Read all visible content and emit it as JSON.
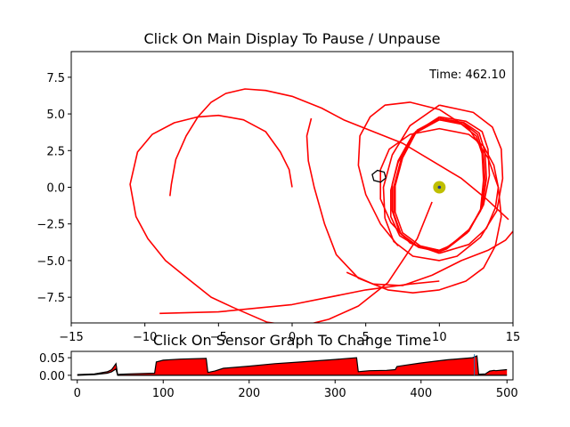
{
  "chart_data": [
    {
      "type": "line",
      "title": "Click On Main Display To Pause / Unpause",
      "annotation": "Time: 462.10",
      "xlim": [
        -15,
        15
      ],
      "ylim": [
        -9.25,
        9.25
      ],
      "x_ticks": [
        -15,
        -10,
        -5,
        0,
        5,
        10,
        15
      ],
      "x_tick_labels": [
        "−15",
        "−10",
        "−5",
        "0",
        "5",
        "10",
        "15"
      ],
      "y_ticks": [
        7.5,
        5.0,
        2.5,
        0.0,
        -2.5,
        -5.0,
        -7.5
      ],
      "y_tick_labels": [
        "7.5",
        "5.0",
        "2.5",
        "0.0",
        "−2.5",
        "−5.0",
        "−7.5"
      ],
      "grid": false,
      "colors": {
        "trajectory": "#ff0000",
        "target": "#bfbf00",
        "marker": "#000000",
        "axes": "#000000"
      },
      "series": [
        {
          "x": [
            0.0,
            -0.2,
            -0.8,
            -1.8,
            -3.3,
            -5.0,
            -6.4,
            -8.0,
            -9.5,
            -10.5,
            -11.0,
            -10.6,
            -9.8,
            -8.6,
            -7.0,
            -5.5,
            -4.0,
            -1.7,
            0.5,
            2.5,
            4.5,
            6.5,
            8.5,
            9.5
          ],
          "y": [
            0.0,
            1.2,
            2.4,
            3.8,
            4.6,
            4.9,
            4.8,
            4.4,
            3.6,
            2.4,
            0.2,
            -2.0,
            -3.5,
            -5.0,
            -6.3,
            -7.5,
            -8.2,
            -9.2,
            -9.5,
            -9.0,
            -8.1,
            -6.5,
            -3.5,
            -1.0
          ]
        },
        {
          "x": [
            -8.3,
            -8.2,
            -7.9,
            -7.2,
            -6.4,
            -5.5,
            -4.5,
            -3.2,
            -1.8,
            0.0,
            2.0,
            3.5,
            5.5,
            7.5,
            9.5,
            11.5,
            13.2,
            14.7
          ],
          "y": [
            -0.6,
            0.2,
            1.9,
            3.5,
            4.8,
            5.8,
            6.4,
            6.7,
            6.6,
            6.2,
            5.4,
            4.6,
            3.8,
            3.0,
            1.8,
            0.6,
            -0.8,
            -2.2
          ]
        },
        {
          "x": [
            1.3,
            1.0,
            1.1,
            1.5,
            2.2,
            3.0,
            4.5,
            6.5,
            8.2,
            10.0,
            11.8,
            13.0,
            13.8,
            14.2,
            14.0,
            13.3,
            12.0,
            10.0,
            8.0,
            6.3,
            5.3,
            4.6,
            4.5,
            5.0,
            6.0,
            7.2
          ],
          "y": [
            4.7,
            3.5,
            1.8,
            0.0,
            -2.5,
            -4.6,
            -6.2,
            -7.0,
            -7.2,
            -7.0,
            -6.4,
            -5.5,
            -4.0,
            -2.0,
            0.0,
            2.0,
            4.0,
            5.3,
            5.8,
            5.6,
            4.8,
            3.5,
            1.5,
            -0.5,
            -2.5,
            -4.0
          ]
        },
        {
          "x": [
            -9.0,
            -5.0,
            0.0,
            5.0,
            8.0,
            10.0
          ],
          "y": [
            -8.6,
            -8.5,
            -8.0,
            -7.0,
            -6.6,
            -6.4
          ]
        },
        {
          "x": [
            3.7,
            5.5,
            7.5,
            9.5,
            11.5,
            13.3,
            14.5,
            15.0
          ],
          "y": [
            -5.8,
            -6.6,
            -6.7,
            -6.0,
            -5.0,
            -4.3,
            -3.6,
            -3.0
          ]
        },
        {
          "x": [
            10.0,
            12.0,
            13.2,
            13.8,
            14.0,
            13.7,
            13.0,
            12.0,
            10.0,
            8.0,
            6.6,
            6.0,
            6.0,
            6.7,
            8.0,
            10.0
          ],
          "y": [
            -4.5,
            -3.9,
            -2.8,
            -1.4,
            0.0,
            1.5,
            2.8,
            3.6,
            4.0,
            3.6,
            2.6,
            1.2,
            -0.8,
            -2.4,
            -3.8,
            -4.5
          ]
        },
        {
          "x": [
            10.0,
            11.5,
            12.5,
            12.9,
            13.0,
            12.8,
            12.0,
            10.5,
            10.0,
            8.5,
            7.3,
            6.8,
            6.8,
            7.2,
            8.2,
            10.0
          ],
          "y": [
            4.6,
            4.3,
            3.5,
            2.3,
            0.5,
            -1.5,
            -3.0,
            -4.1,
            -4.3,
            -4.0,
            -3.1,
            -1.6,
            0.2,
            1.8,
            3.6,
            4.6
          ]
        },
        {
          "x": [
            10.0,
            11.6,
            12.6,
            13.0,
            13.1,
            12.8,
            11.9,
            10.5,
            10.0,
            8.6,
            7.4,
            6.9,
            6.9,
            7.4,
            8.4,
            10.0
          ],
          "y": [
            4.6,
            4.4,
            3.6,
            2.2,
            0.4,
            -1.6,
            -3.1,
            -4.2,
            -4.4,
            -4.1,
            -3.2,
            -1.8,
            0.0,
            1.9,
            3.8,
            4.6
          ]
        },
        {
          "x": [
            10.0,
            11.7,
            12.7,
            13.1,
            13.2,
            12.9,
            12.0,
            10.6,
            10.0,
            8.7,
            7.5,
            7.0,
            7.0,
            7.5,
            8.5,
            10.0
          ],
          "y": [
            4.7,
            4.4,
            3.7,
            2.4,
            0.6,
            -1.4,
            -2.9,
            -4.1,
            -4.3,
            -4.0,
            -3.1,
            -1.7,
            0.1,
            2.0,
            3.9,
            4.7
          ]
        },
        {
          "x": [
            10.0,
            11.8,
            12.9,
            13.3,
            13.4,
            13.0,
            12.1,
            10.7,
            10.0,
            8.6,
            7.3,
            6.7,
            6.7,
            7.2,
            8.3,
            10.0
          ],
          "y": [
            4.8,
            4.5,
            3.8,
            2.6,
            0.8,
            -1.2,
            -2.8,
            -4.0,
            -4.3,
            -4.1,
            -3.3,
            -2.0,
            -0.2,
            1.7,
            3.7,
            4.8
          ]
        },
        {
          "x": [
            10.0,
            12.3,
            13.6,
            14.2,
            14.3,
            13.9,
            12.8,
            11.2,
            10.0,
            8.2,
            6.9,
            6.3,
            6.2,
            6.8,
            8.0,
            10.0
          ],
          "y": [
            5.6,
            5.1,
            4.1,
            2.6,
            0.6,
            -1.6,
            -3.4,
            -4.7,
            -5.0,
            -4.7,
            -3.7,
            -2.1,
            0.0,
            2.2,
            4.2,
            5.6
          ]
        }
      ],
      "target": {
        "x": 10.0,
        "y": 0.0
      },
      "agent": {
        "x": 5.9,
        "y": 0.75
      }
    },
    {
      "type": "line",
      "title": "Click On Sensor Graph To Change Time",
      "xlim": [
        -7,
        507
      ],
      "ylim": [
        -0.013,
        0.068
      ],
      "x_ticks": [
        0,
        100,
        200,
        300,
        400,
        500
      ],
      "x_tick_labels": [
        "0",
        "100",
        "200",
        "300",
        "400",
        "500"
      ],
      "y_ticks": [
        0.05,
        0.0
      ],
      "y_tick_labels": [
        "0.05",
        "0.00"
      ],
      "grid": false,
      "colors": {
        "signal": "#ff0000",
        "envelope": "#000000",
        "cursor": "#1f77b4"
      },
      "series": [
        {
          "name": "",
          "x": [
            0,
            20,
            35,
            40,
            45,
            47,
            50,
            60,
            90,
            92,
            100,
            120,
            150,
            152,
            160,
            170,
            200,
            230,
            260,
            300,
            325,
            327,
            340,
            360,
            370,
            372,
            380,
            400,
            430,
            460,
            465,
            467,
            475,
            480,
            485,
            487,
            500
          ],
          "low": [
            0.0,
            0.002,
            0.006,
            0.01,
            0.018,
            0.0,
            0.0,
            0.0,
            0.0,
            0.0,
            0.0,
            0.0,
            0.0,
            0.0,
            0.0,
            0.0,
            0.0,
            0.0,
            0.0,
            0.0,
            0.0,
            0.0,
            0.0,
            0.0,
            0.0,
            0.0,
            0.0,
            0.0,
            0.0,
            0.0,
            0.0,
            0.0,
            0.0,
            0.0,
            0.0,
            0.0,
            0.0
          ],
          "high": [
            0.002,
            0.004,
            0.01,
            0.016,
            0.033,
            0.002,
            0.003,
            0.004,
            0.006,
            0.038,
            0.043,
            0.046,
            0.048,
            0.008,
            0.012,
            0.02,
            0.026,
            0.033,
            0.038,
            0.045,
            0.05,
            0.01,
            0.013,
            0.014,
            0.016,
            0.025,
            0.028,
            0.035,
            0.044,
            0.05,
            0.055,
            0.003,
            0.004,
            0.012,
            0.014,
            0.013,
            0.016
          ]
        }
      ],
      "cursor_time": 462.1
    }
  ]
}
